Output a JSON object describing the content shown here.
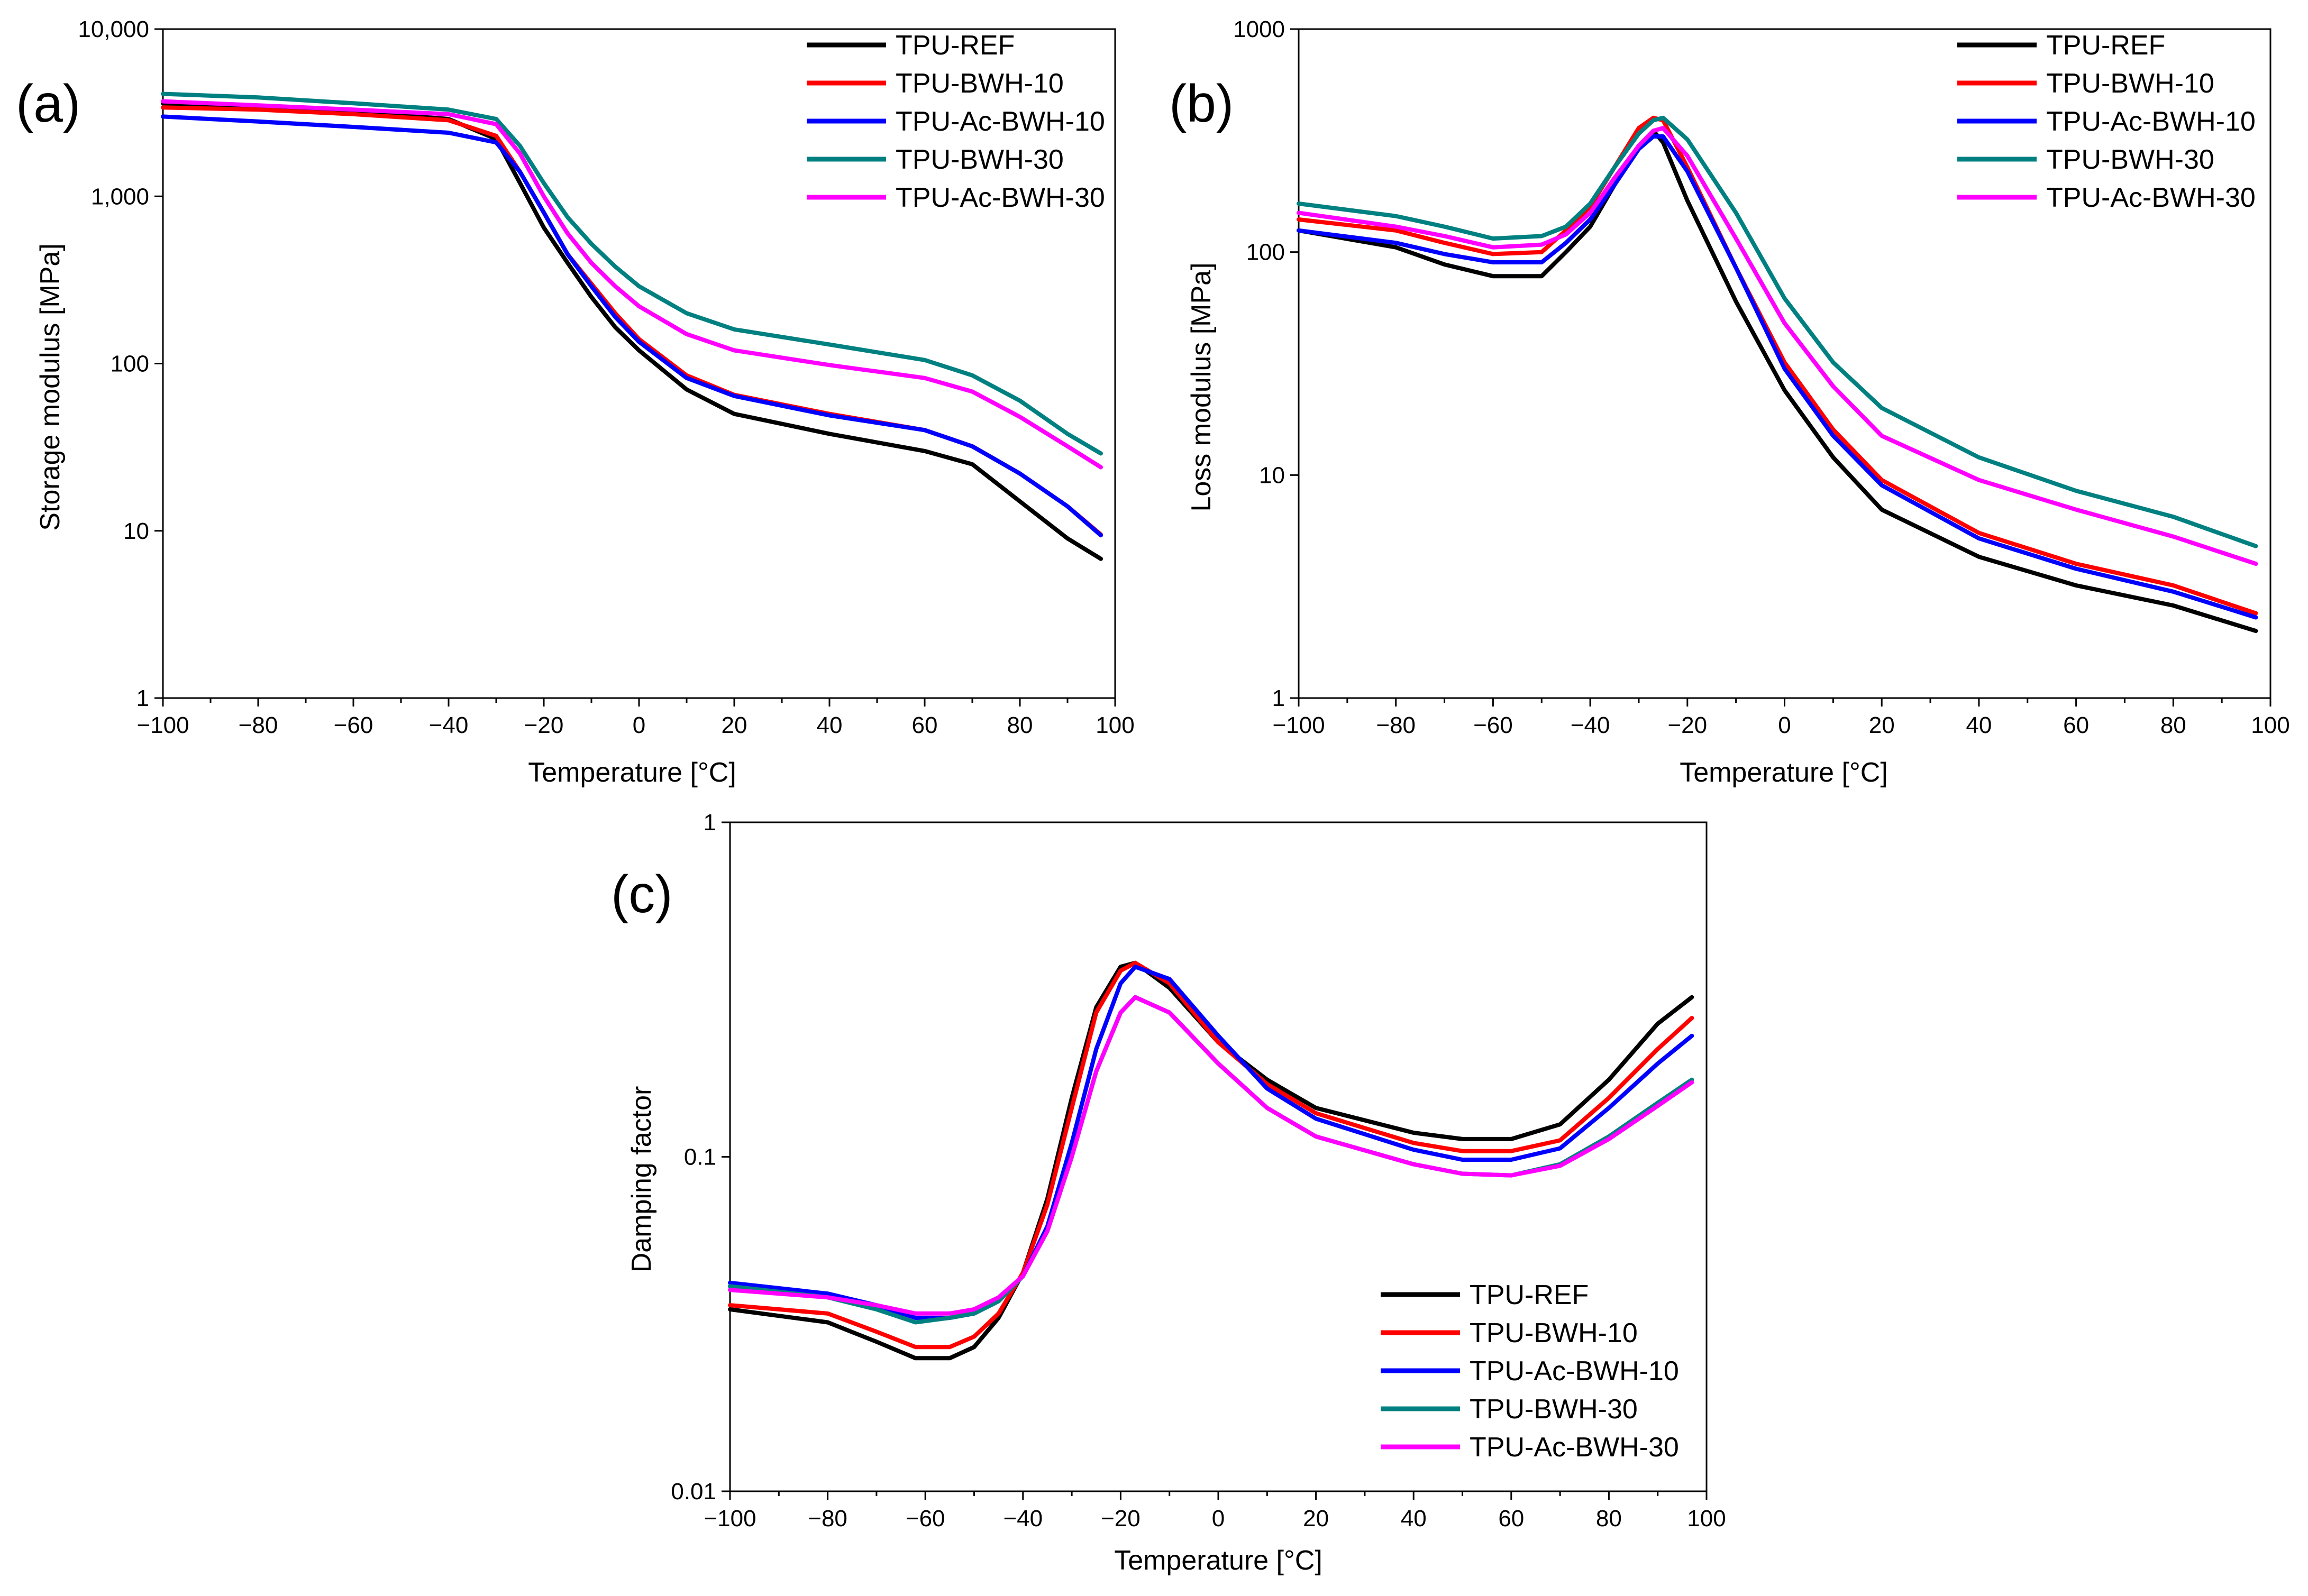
{
  "colors": {
    "TPU-REF": "#000000",
    "TPU-BWH-10": "#ff0000",
    "TPU-Ac-BWH-10": "#0000ff",
    "TPU-BWH-30": "#008080",
    "TPU-Ac-BWH-30": "#ff00ff"
  },
  "chart_data": [
    {
      "panel_label": "(a)",
      "type": "line",
      "xlabel": "Temperature [°C]",
      "ylabel": "Storage modulus [MPa]",
      "xlim": [
        -100,
        100
      ],
      "ylim": [
        1,
        10000
      ],
      "yscale": "log",
      "xticks": [
        -100,
        -80,
        -60,
        -40,
        -20,
        0,
        20,
        40,
        60,
        80,
        100
      ],
      "yticks": [
        1,
        10,
        100,
        1000,
        10000
      ],
      "ytick_labels": [
        "1",
        "10",
        "100",
        "1,000",
        "10,000"
      ],
      "grid": false,
      "legend_position": "top-right",
      "series": [
        {
          "name": "TPU-REF",
          "x": [
            -100,
            -80,
            -60,
            -40,
            -30,
            -25,
            -20,
            -15,
            -10,
            -5,
            0,
            10,
            20,
            40,
            60,
            70,
            80,
            90,
            97
          ],
          "y": [
            3600,
            3400,
            3200,
            2900,
            2200,
            1200,
            650,
            400,
            250,
            165,
            120,
            70,
            50,
            38,
            30,
            25,
            15,
            9,
            6.8
          ]
        },
        {
          "name": "TPU-BWH-10",
          "x": [
            -100,
            -80,
            -60,
            -40,
            -30,
            -25,
            -20,
            -15,
            -10,
            -5,
            0,
            10,
            20,
            40,
            60,
            70,
            80,
            90,
            97
          ],
          "y": [
            3400,
            3300,
            3100,
            2850,
            2300,
            1400,
            800,
            450,
            300,
            200,
            140,
            85,
            65,
            50,
            40,
            32,
            22,
            14,
            9.5
          ]
        },
        {
          "name": "TPU-Ac-BWH-10",
          "x": [
            -100,
            -80,
            -60,
            -40,
            -30,
            -25,
            -20,
            -15,
            -10,
            -5,
            0,
            10,
            20,
            40,
            60,
            70,
            80,
            90,
            97
          ],
          "y": [
            3000,
            2800,
            2600,
            2400,
            2100,
            1400,
            800,
            450,
            290,
            190,
            135,
            82,
            64,
            49,
            40,
            32,
            22,
            14,
            9.4
          ]
        },
        {
          "name": "TPU-BWH-30",
          "x": [
            -100,
            -80,
            -60,
            -40,
            -30,
            -25,
            -20,
            -15,
            -10,
            -5,
            0,
            10,
            20,
            40,
            60,
            70,
            80,
            90,
            97
          ],
          "y": [
            4100,
            3900,
            3600,
            3300,
            2900,
            2000,
            1200,
            750,
            520,
            380,
            290,
            200,
            160,
            130,
            105,
            85,
            60,
            38,
            29
          ]
        },
        {
          "name": "TPU-Ac-BWH-30",
          "x": [
            -100,
            -80,
            -60,
            -40,
            -30,
            -25,
            -20,
            -15,
            -10,
            -5,
            0,
            10,
            20,
            40,
            60,
            70,
            80,
            90,
            97
          ],
          "y": [
            3700,
            3500,
            3300,
            3100,
            2700,
            1800,
            1000,
            600,
            400,
            290,
            220,
            150,
            120,
            98,
            82,
            68,
            48,
            32,
            24
          ]
        }
      ]
    },
    {
      "panel_label": "(b)",
      "type": "line",
      "xlabel": "Temperature [°C]",
      "ylabel": "Loss modulus [MPa]",
      "xlim": [
        -100,
        100
      ],
      "ylim": [
        1,
        1000
      ],
      "yscale": "log",
      "xticks": [
        -100,
        -80,
        -60,
        -40,
        -20,
        0,
        20,
        40,
        60,
        80,
        100
      ],
      "yticks": [
        1,
        10,
        100,
        1000
      ],
      "ytick_labels": [
        "1",
        "10",
        "100",
        "1000"
      ],
      "grid": false,
      "legend_position": "top-right",
      "series": [
        {
          "name": "TPU-REF",
          "x": [
            -100,
            -80,
            -70,
            -60,
            -50,
            -45,
            -40,
            -35,
            -30,
            -27,
            -25,
            -20,
            -10,
            0,
            10,
            20,
            40,
            60,
            80,
            97
          ],
          "y": [
            125,
            105,
            88,
            78,
            78,
            100,
            130,
            200,
            300,
            350,
            310,
            170,
            60,
            24,
            12,
            7,
            4.3,
            3.2,
            2.6,
            2.0
          ]
        },
        {
          "name": "TPU-BWH-10",
          "x": [
            -100,
            -80,
            -70,
            -60,
            -50,
            -45,
            -40,
            -35,
            -30,
            -27,
            -25,
            -20,
            -10,
            0,
            10,
            20,
            40,
            60,
            80,
            97
          ],
          "y": [
            140,
            125,
            110,
            98,
            100,
            125,
            160,
            240,
            360,
            400,
            390,
            240,
            85,
            32,
            16,
            9.5,
            5.5,
            4.0,
            3.2,
            2.4
          ]
        },
        {
          "name": "TPU-Ac-BWH-10",
          "x": [
            -100,
            -80,
            -70,
            -60,
            -50,
            -45,
            -40,
            -35,
            -30,
            -27,
            -25,
            -20,
            -10,
            0,
            10,
            20,
            40,
            60,
            80,
            97
          ],
          "y": [
            125,
            110,
            98,
            90,
            90,
            110,
            140,
            200,
            290,
            330,
            330,
            230,
            85,
            30,
            15,
            9,
            5.2,
            3.8,
            3.0,
            2.3
          ]
        },
        {
          "name": "TPU-BWH-30",
          "x": [
            -100,
            -80,
            -70,
            -60,
            -50,
            -45,
            -40,
            -35,
            -30,
            -27,
            -25,
            -20,
            -10,
            0,
            10,
            20,
            40,
            60,
            80,
            97
          ],
          "y": [
            165,
            145,
            130,
            115,
            118,
            130,
            165,
            240,
            340,
            390,
            400,
            320,
            150,
            62,
            32,
            20,
            12,
            8.5,
            6.5,
            4.8
          ]
        },
        {
          "name": "TPU-Ac-BWH-30",
          "x": [
            -100,
            -80,
            -70,
            -60,
            -50,
            -45,
            -40,
            -35,
            -30,
            -27,
            -25,
            -20,
            -10,
            0,
            10,
            20,
            40,
            60,
            80,
            97
          ],
          "y": [
            150,
            130,
            118,
            105,
            108,
            120,
            150,
            215,
            300,
            350,
            360,
            270,
            115,
            48,
            25,
            15,
            9.5,
            7.0,
            5.3,
            4.0
          ]
        }
      ]
    },
    {
      "panel_label": "(c)",
      "type": "line",
      "xlabel": "Temperature [°C]",
      "ylabel": "Damping factor",
      "xlim": [
        -100,
        100
      ],
      "ylim": [
        0.01,
        1
      ],
      "yscale": "log",
      "xticks": [
        -100,
        -80,
        -60,
        -40,
        -20,
        0,
        20,
        40,
        60,
        80,
        100
      ],
      "yticks": [
        0.01,
        0.1,
        1
      ],
      "ytick_labels": [
        "0.01",
        "0.1",
        "1"
      ],
      "grid": false,
      "legend_position": "bottom-right",
      "series": [
        {
          "name": "TPU-REF",
          "x": [
            -100,
            -80,
            -70,
            -62,
            -55,
            -50,
            -45,
            -40,
            -35,
            -30,
            -25,
            -20,
            -17,
            -10,
            0,
            10,
            20,
            40,
            50,
            60,
            70,
            80,
            90,
            97
          ],
          "y": [
            0.035,
            0.032,
            0.028,
            0.025,
            0.025,
            0.027,
            0.033,
            0.045,
            0.075,
            0.15,
            0.28,
            0.37,
            0.38,
            0.32,
            0.22,
            0.17,
            0.14,
            0.118,
            0.113,
            0.113,
            0.125,
            0.17,
            0.25,
            0.3
          ]
        },
        {
          "name": "TPU-BWH-10",
          "x": [
            -100,
            -80,
            -70,
            -62,
            -55,
            -50,
            -45,
            -40,
            -35,
            -30,
            -25,
            -20,
            -17,
            -10,
            0,
            10,
            20,
            40,
            50,
            60,
            70,
            80,
            90,
            97
          ],
          "y": [
            0.036,
            0.034,
            0.03,
            0.027,
            0.027,
            0.029,
            0.034,
            0.045,
            0.072,
            0.14,
            0.27,
            0.36,
            0.38,
            0.33,
            0.22,
            0.165,
            0.135,
            0.11,
            0.104,
            0.104,
            0.112,
            0.15,
            0.21,
            0.26
          ]
        },
        {
          "name": "TPU-Ac-BWH-10",
          "x": [
            -100,
            -80,
            -70,
            -62,
            -55,
            -50,
            -45,
            -40,
            -35,
            -30,
            -25,
            -20,
            -17,
            -10,
            0,
            10,
            20,
            40,
            50,
            60,
            70,
            80,
            90,
            97
          ],
          "y": [
            0.042,
            0.039,
            0.036,
            0.033,
            0.033,
            0.034,
            0.037,
            0.044,
            0.062,
            0.11,
            0.21,
            0.33,
            0.37,
            0.34,
            0.23,
            0.16,
            0.13,
            0.105,
            0.098,
            0.098,
            0.106,
            0.14,
            0.19,
            0.23
          ]
        },
        {
          "name": "TPU-BWH-30",
          "x": [
            -100,
            -80,
            -70,
            -62,
            -55,
            -50,
            -45,
            -40,
            -35,
            -30,
            -25,
            -20,
            -17,
            -10,
            0,
            10,
            20,
            40,
            50,
            60,
            70,
            80,
            90,
            97
          ],
          "y": [
            0.041,
            0.038,
            0.035,
            0.032,
            0.033,
            0.034,
            0.037,
            0.044,
            0.06,
            0.1,
            0.18,
            0.27,
            0.3,
            0.27,
            0.19,
            0.14,
            0.115,
            0.095,
            0.089,
            0.088,
            0.095,
            0.115,
            0.145,
            0.17
          ]
        },
        {
          "name": "TPU-Ac-BWH-30",
          "x": [
            -100,
            -80,
            -70,
            -62,
            -55,
            -50,
            -45,
            -40,
            -35,
            -30,
            -25,
            -20,
            -17,
            -10,
            0,
            10,
            20,
            40,
            50,
            60,
            70,
            80,
            90,
            97
          ],
          "y": [
            0.04,
            0.038,
            0.036,
            0.034,
            0.034,
            0.035,
            0.038,
            0.044,
            0.06,
            0.1,
            0.18,
            0.27,
            0.3,
            0.27,
            0.19,
            0.14,
            0.115,
            0.095,
            0.089,
            0.088,
            0.094,
            0.113,
            0.142,
            0.167
          ]
        }
      ]
    }
  ]
}
